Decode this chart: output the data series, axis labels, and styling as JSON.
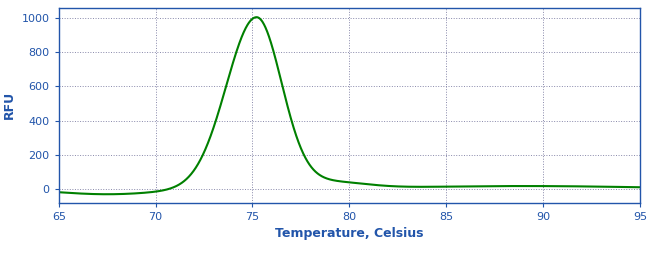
{
  "xlabel": "Temperature, Celsius",
  "ylabel": "RFU",
  "xlim": [
    65,
    95
  ],
  "ylim": [
    -80,
    1060
  ],
  "xticks": [
    65,
    70,
    75,
    80,
    85,
    90,
    95
  ],
  "yticks": [
    0,
    200,
    400,
    600,
    800,
    1000
  ],
  "line_color": "#008000",
  "line_width": 1.5,
  "background_color": "#ffffff",
  "grid_color": "#8888aa",
  "axis_color": "#2255aa",
  "tick_color": "#2255aa",
  "label_color": "#2255aa",
  "figsize": [
    6.53,
    2.6
  ],
  "dpi": 100
}
